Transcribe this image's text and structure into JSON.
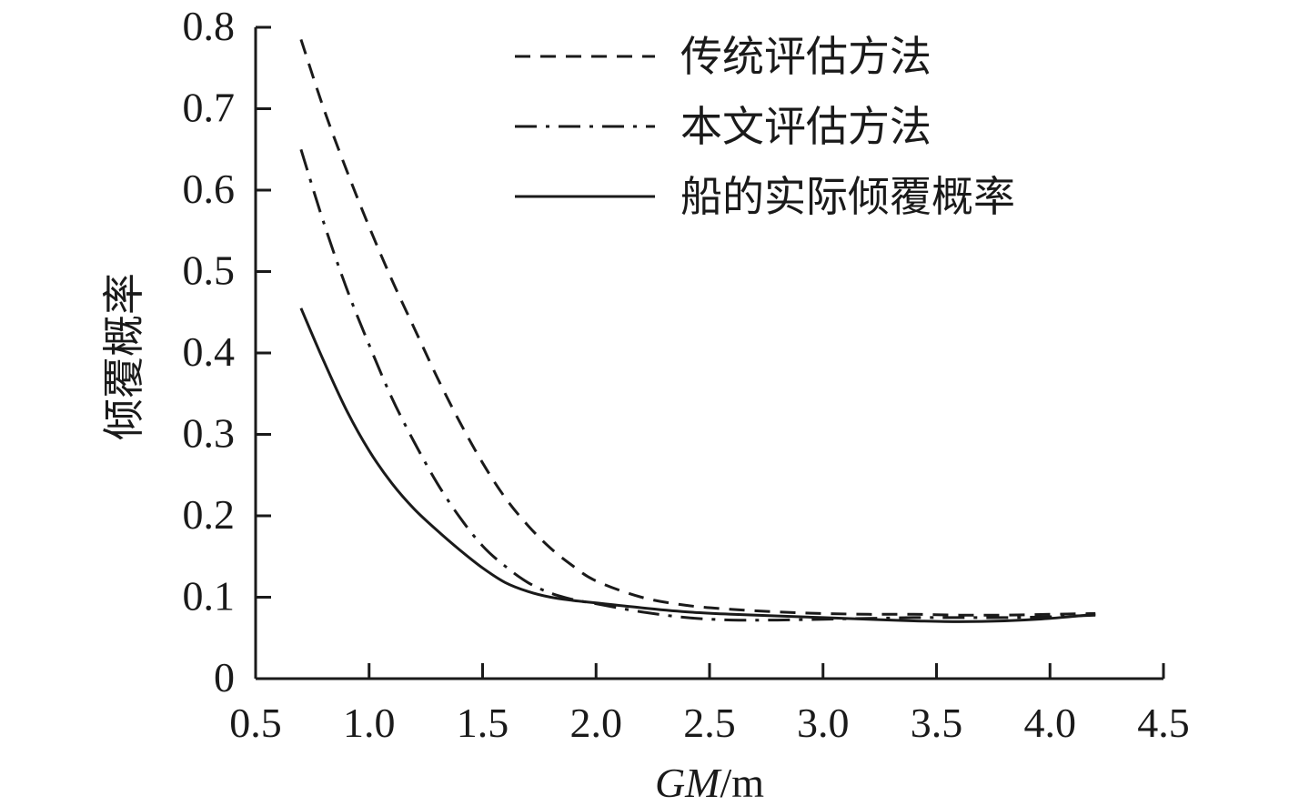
{
  "chart_data": {
    "type": "line",
    "title": "",
    "xlabel_italic": "GM",
    "xlabel_unit": "/m",
    "ylabel": "倾覆概率",
    "xlim": [
      0.5,
      4.5
    ],
    "ylim": [
      0,
      0.8
    ],
    "x_ticks": [
      "0.5",
      "1.0",
      "1.5",
      "2.0",
      "2.5",
      "3.0",
      "3.5",
      "4.0",
      "4.5"
    ],
    "y_ticks": [
      "0",
      "0.1",
      "0.2",
      "0.3",
      "0.4",
      "0.5",
      "0.6",
      "0.7",
      "0.8"
    ],
    "grid": false,
    "legend_position": "top-right",
    "series": [
      {
        "name": "传统评估方法",
        "style": "dashed",
        "color": "#1a1a1a",
        "x": [
          0.7,
          0.8,
          0.9,
          1.0,
          1.1,
          1.2,
          1.3,
          1.4,
          1.5,
          1.6,
          1.7,
          1.8,
          1.9,
          2.0,
          2.2,
          2.4,
          2.6,
          2.8,
          3.0,
          3.2,
          3.4,
          3.6,
          3.8,
          4.0,
          4.2
        ],
        "y": [
          0.785,
          0.7,
          0.625,
          0.555,
          0.49,
          0.43,
          0.37,
          0.315,
          0.265,
          0.222,
          0.188,
          0.16,
          0.138,
          0.12,
          0.1,
          0.09,
          0.085,
          0.082,
          0.08,
          0.079,
          0.079,
          0.078,
          0.078,
          0.079,
          0.08
        ]
      },
      {
        "name": "本文评估方法",
        "style": "dash-dot",
        "color": "#1a1a1a",
        "x": [
          0.7,
          0.8,
          0.9,
          1.0,
          1.1,
          1.2,
          1.3,
          1.4,
          1.5,
          1.6,
          1.7,
          1.8,
          1.9,
          2.0,
          2.2,
          2.4,
          2.6,
          2.8,
          3.0,
          3.2,
          3.4,
          3.6,
          3.8,
          4.0,
          4.2
        ],
        "y": [
          0.65,
          0.56,
          0.48,
          0.41,
          0.345,
          0.29,
          0.24,
          0.198,
          0.163,
          0.138,
          0.118,
          0.105,
          0.097,
          0.092,
          0.082,
          0.075,
          0.072,
          0.072,
          0.073,
          0.074,
          0.075,
          0.075,
          0.075,
          0.076,
          0.078
        ]
      },
      {
        "name": "船的实际倾覆概率",
        "style": "solid",
        "color": "#1a1a1a",
        "x": [
          0.7,
          0.8,
          0.9,
          1.0,
          1.1,
          1.2,
          1.3,
          1.4,
          1.5,
          1.6,
          1.7,
          1.8,
          1.9,
          2.0,
          2.2,
          2.4,
          2.6,
          2.8,
          3.0,
          3.2,
          3.4,
          3.6,
          3.8,
          4.0,
          4.2
        ],
        "y": [
          0.455,
          0.39,
          0.33,
          0.28,
          0.24,
          0.208,
          0.182,
          0.158,
          0.136,
          0.118,
          0.107,
          0.1,
          0.096,
          0.093,
          0.087,
          0.082,
          0.079,
          0.077,
          0.075,
          0.073,
          0.071,
          0.07,
          0.071,
          0.074,
          0.079
        ]
      }
    ]
  }
}
